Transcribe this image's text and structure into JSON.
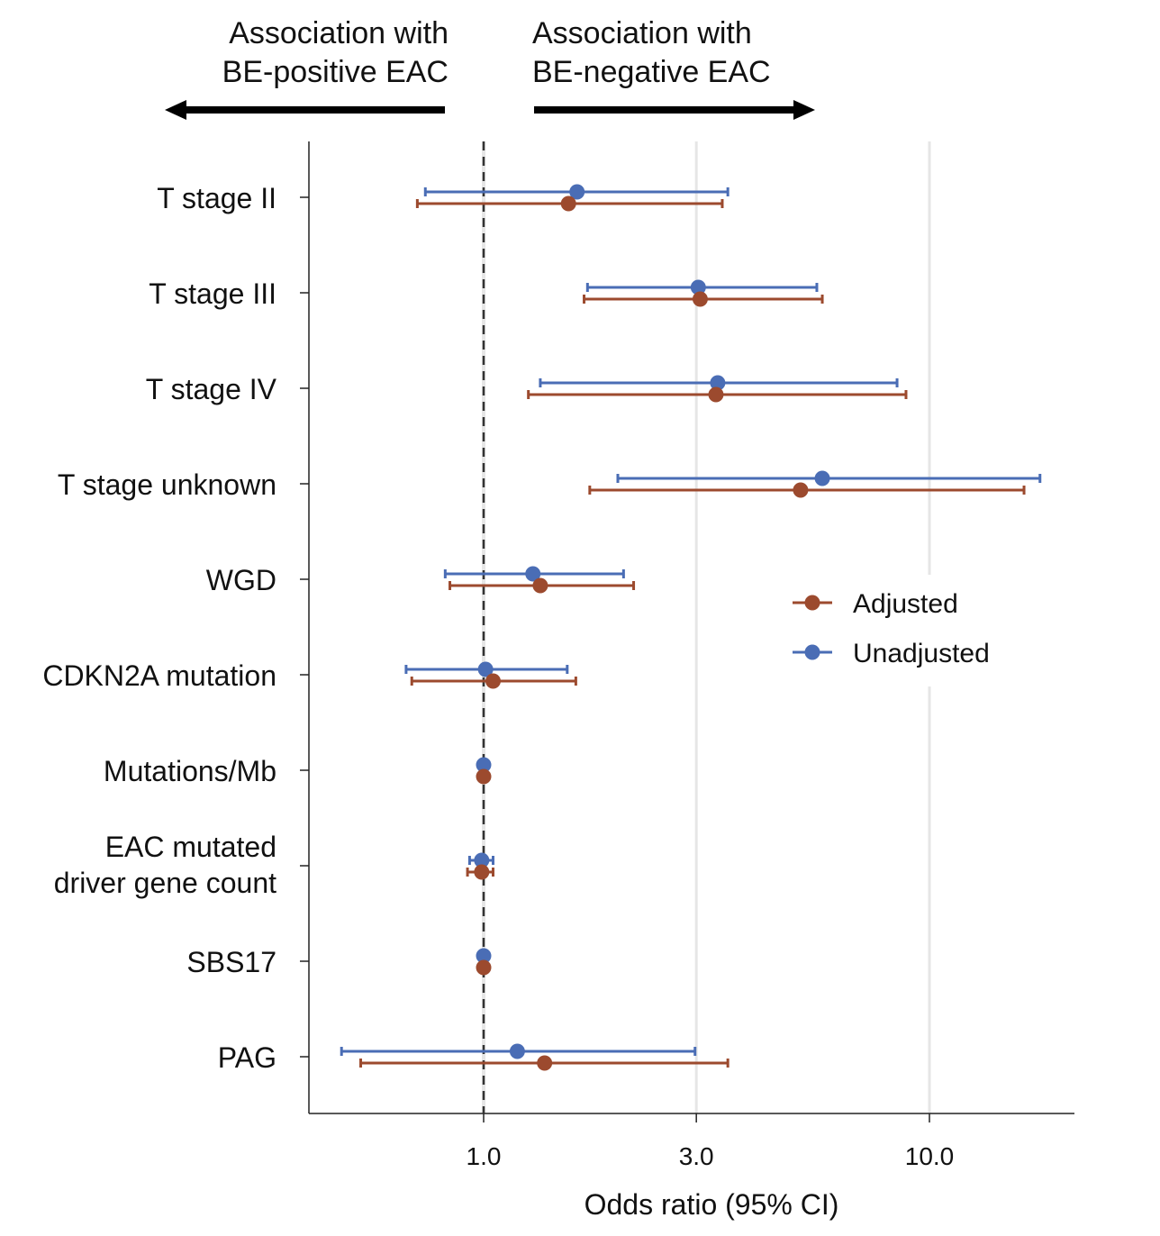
{
  "chart_data": {
    "type": "forest",
    "xlabel": "Odds ratio (95% CI)",
    "xscale": "log",
    "xlim": [
      0.405,
      21
    ],
    "xticks": [
      1.0,
      3.0,
      10.0
    ],
    "xtick_labels": [
      "1.0",
      "3.0",
      "10.0"
    ],
    "reference_line": 1.0,
    "vertical_gridlines": [
      3.0,
      10.0
    ],
    "legend_placement": "right",
    "annotations": {
      "left": [
        "Association with",
        "BE-positive EAC"
      ],
      "right": [
        "Association with",
        "BE-negative EAC"
      ]
    },
    "categories": [
      [
        "T stage II"
      ],
      [
        "T stage III"
      ],
      [
        "T stage IV"
      ],
      [
        "T stage unknown"
      ],
      [
        "WGD"
      ],
      [
        "CDKN2A mutation"
      ],
      [
        "Mutations/Mb"
      ],
      [
        "EAC mutated",
        "driver gene count"
      ],
      [
        "SBS17"
      ],
      [
        "PAG"
      ]
    ],
    "series": [
      {
        "name": "Unadjusted",
        "color": "#4A6DB5",
        "or": [
          1.62,
          3.03,
          3.35,
          5.75,
          1.29,
          1.01,
          1.0,
          0.99,
          1.0,
          1.19
        ],
        "lower": [
          0.74,
          1.71,
          1.34,
          2.0,
          0.82,
          0.67,
          0.99,
          0.93,
          0.99,
          0.48
        ],
        "upper": [
          3.53,
          5.59,
          8.46,
          17.7,
          2.06,
          1.54,
          1.01,
          1.05,
          1.01,
          2.98
        ]
      },
      {
        "name": "Adjusted",
        "color": "#9C4A2E",
        "or": [
          1.55,
          3.06,
          3.32,
          5.14,
          1.34,
          1.05,
          1.0,
          0.99,
          1.0,
          1.37
        ],
        "lower": [
          0.71,
          1.68,
          1.26,
          1.73,
          0.84,
          0.69,
          0.99,
          0.92,
          0.99,
          0.53
        ],
        "upper": [
          3.43,
          5.75,
          8.86,
          16.3,
          2.17,
          1.61,
          1.01,
          1.05,
          1.01,
          3.53
        ]
      }
    ],
    "legend_order": [
      "Adjusted",
      "Unadjusted"
    ]
  }
}
